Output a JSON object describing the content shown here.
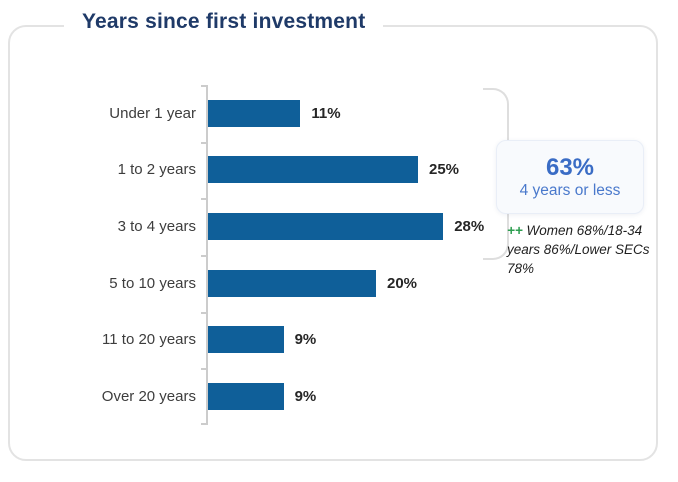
{
  "card": {
    "title": "Years since first investment"
  },
  "chart_data": {
    "type": "bar",
    "orientation": "horizontal",
    "title": "Years since first investment",
    "categories": [
      "Under 1 year",
      "1 to 2 years",
      "3 to 4 years",
      "5 to 10 years",
      "11 to 20 years",
      "Over 20 years"
    ],
    "values": [
      11,
      25,
      28,
      20,
      9,
      9
    ],
    "value_labels": [
      "11%",
      "25%",
      "28%",
      "20%",
      "9%",
      "9%"
    ],
    "xlabel": "",
    "ylabel": "",
    "xlim": [
      0,
      30
    ],
    "grid": false,
    "legend": false,
    "bar_color": "#0f5f99",
    "axis_color": "#cccccc",
    "value_label_color": "#262626",
    "category_label_color": "#3d3d3d"
  },
  "callout": {
    "headline": "63%",
    "subline": "4 years or less",
    "accent_color": "#3a6cc5",
    "grouped_categories": [
      "Under 1 year",
      "1 to 2 years",
      "3 to 4 years"
    ]
  },
  "footnote": {
    "marker": "++",
    "marker_color": "#2e9e50",
    "text": "Women 68%/18-34 years 86%/Lower SECs 78%"
  }
}
